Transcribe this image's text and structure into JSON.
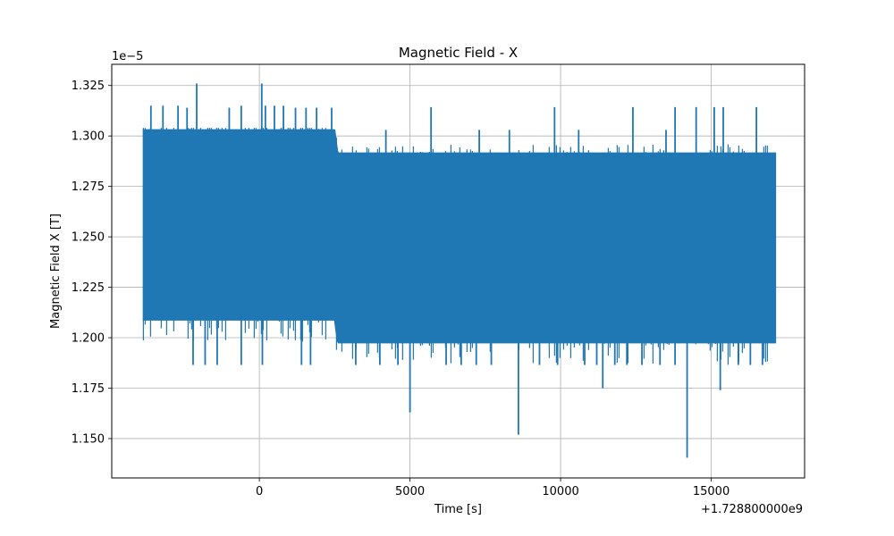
{
  "chart_data": {
    "type": "line",
    "title": "Magnetic Field - X",
    "xlabel": "Time [s]",
    "ylabel": "Magnetic Field X [T]",
    "x_offset_text": "+1.728800000e9",
    "y_scale_text": "1e−5",
    "xlim": [
      -4900,
      18100
    ],
    "ylim": [
      1.1305,
      1.3355
    ],
    "x_ticks": [
      0,
      5000,
      10000,
      15000
    ],
    "x_tick_labels": [
      "0",
      "5000",
      "10000",
      "15000"
    ],
    "y_ticks": [
      1.15,
      1.175,
      1.2,
      1.225,
      1.25,
      1.275,
      1.3,
      1.325
    ],
    "y_tick_labels": [
      "1.150",
      "1.175",
      "1.200",
      "1.225",
      "1.250",
      "1.275",
      "1.300",
      "1.325"
    ],
    "grid": true,
    "series_color": "#1f77b4",
    "series": [
      {
        "x_start": -3850,
        "x_end": 17150,
        "dense_band": [
          {
            "x": -3850,
            "low": 1.2088,
            "high": 1.303
          },
          {
            "x": 2500,
            "low": 1.2088,
            "high": 1.303
          },
          {
            "x": 2600,
            "low": 1.1975,
            "high": 1.2915
          },
          {
            "x": 17150,
            "low": 1.1975,
            "high": 1.2915
          }
        ],
        "spikes": [
          {
            "x": -2080,
            "y": 1.326
          },
          {
            "x": 80,
            "y": 1.326
          },
          {
            "x": -3600,
            "y": 1.315
          },
          {
            "x": -3200,
            "y": 1.315
          },
          {
            "x": -2700,
            "y": 1.315
          },
          {
            "x": -2400,
            "y": 1.314
          },
          {
            "x": -1000,
            "y": 1.314
          },
          {
            "x": -600,
            "y": 1.315
          },
          {
            "x": 200,
            "y": 1.315
          },
          {
            "x": 500,
            "y": 1.315
          },
          {
            "x": 800,
            "y": 1.315
          },
          {
            "x": 1200,
            "y": 1.314
          },
          {
            "x": 1550,
            "y": 1.314
          },
          {
            "x": 1900,
            "y": 1.314
          },
          {
            "x": 2400,
            "y": 1.314
          },
          {
            "x": 5700,
            "y": 1.3143
          },
          {
            "x": 9800,
            "y": 1.3143
          },
          {
            "x": 12400,
            "y": 1.3143
          },
          {
            "x": 13800,
            "y": 1.3143
          },
          {
            "x": 14500,
            "y": 1.3143
          },
          {
            "x": 15100,
            "y": 1.3143
          },
          {
            "x": 15400,
            "y": 1.3143
          },
          {
            "x": 16500,
            "y": 1.3143
          },
          {
            "x": 4200,
            "y": 1.303
          },
          {
            "x": 7300,
            "y": 1.303
          },
          {
            "x": 8300,
            "y": 1.303
          },
          {
            "x": 10600,
            "y": 1.303
          },
          {
            "x": 13500,
            "y": 1.303
          },
          {
            "x": 5000,
            "y": 1.163
          },
          {
            "x": 8600,
            "y": 1.152
          },
          {
            "x": 11400,
            "y": 1.175
          },
          {
            "x": 14200,
            "y": 1.1405
          },
          {
            "x": 15300,
            "y": 1.174
          },
          {
            "x": -2200,
            "y": 1.1865
          },
          {
            "x": -1800,
            "y": 1.1865
          },
          {
            "x": -1400,
            "y": 1.1865
          },
          {
            "x": -600,
            "y": 1.1865
          },
          {
            "x": 100,
            "y": 1.1865
          },
          {
            "x": 1400,
            "y": 1.1865
          },
          {
            "x": 1700,
            "y": 1.1865
          },
          {
            "x": 3200,
            "y": 1.1865
          },
          {
            "x": 4000,
            "y": 1.1865
          },
          {
            "x": 4600,
            "y": 1.1865
          },
          {
            "x": 6200,
            "y": 1.1865
          },
          {
            "x": 6700,
            "y": 1.1865
          },
          {
            "x": 7200,
            "y": 1.1865
          },
          {
            "x": 7700,
            "y": 1.1865
          },
          {
            "x": 9300,
            "y": 1.1865
          },
          {
            "x": 9900,
            "y": 1.1865
          },
          {
            "x": 10800,
            "y": 1.1865
          },
          {
            "x": 11200,
            "y": 1.1865
          },
          {
            "x": 11800,
            "y": 1.1865
          },
          {
            "x": 12200,
            "y": 1.1865
          },
          {
            "x": 12700,
            "y": 1.1865
          },
          {
            "x": 13300,
            "y": 1.1865
          },
          {
            "x": 13800,
            "y": 1.1865
          },
          {
            "x": 15900,
            "y": 1.1865
          },
          {
            "x": 16300,
            "y": 1.1865
          },
          {
            "x": 16700,
            "y": 1.1865
          }
        ]
      }
    ]
  }
}
